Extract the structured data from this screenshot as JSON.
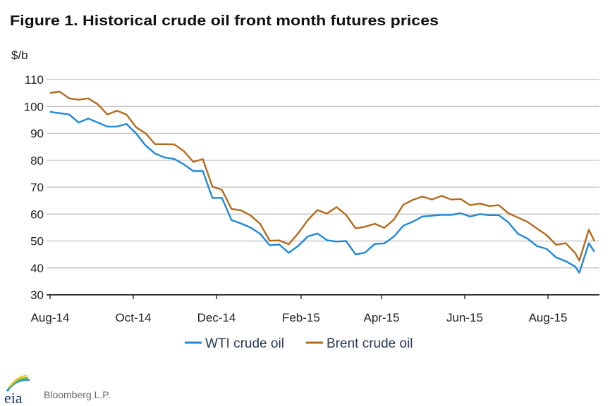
{
  "chart_data": {
    "type": "line",
    "title": "Figure 1. Historical crude oil front month futures prices",
    "ylabel": "$/b",
    "xlabel": "",
    "ylim": [
      30,
      110
    ],
    "yticks": [
      "30",
      "40",
      "50",
      "60",
      "70",
      "80",
      "90",
      "100",
      "110"
    ],
    "xticks": [
      {
        "label": "Aug-14",
        "date": "2014-08-01"
      },
      {
        "label": "Oct-14",
        "date": "2014-10-01"
      },
      {
        "label": "Dec-14",
        "date": "2014-12-01"
      },
      {
        "label": "Feb-15",
        "date": "2015-02-01"
      },
      {
        "label": "Apr-15",
        "date": "2015-04-01"
      },
      {
        "label": "Jun-15",
        "date": "2015-06-01"
      },
      {
        "label": "Aug-15",
        "date": "2015-08-01"
      }
    ],
    "grid": true,
    "legend": "bottom",
    "x": [
      "2014-08-01",
      "2014-08-08",
      "2014-08-15",
      "2014-08-22",
      "2014-08-29",
      "2014-09-05",
      "2014-09-12",
      "2014-09-19",
      "2014-09-26",
      "2014-10-03",
      "2014-10-10",
      "2014-10-17",
      "2014-10-24",
      "2014-10-31",
      "2014-11-07",
      "2014-11-14",
      "2014-11-21",
      "2014-11-28",
      "2014-12-05",
      "2014-12-12",
      "2014-12-19",
      "2014-12-26",
      "2015-01-02",
      "2015-01-09",
      "2015-01-16",
      "2015-01-23",
      "2015-01-30",
      "2015-02-06",
      "2015-02-13",
      "2015-02-20",
      "2015-02-27",
      "2015-03-06",
      "2015-03-13",
      "2015-03-20",
      "2015-03-27",
      "2015-04-03",
      "2015-04-10",
      "2015-04-17",
      "2015-04-24",
      "2015-05-01",
      "2015-05-08",
      "2015-05-15",
      "2015-05-22",
      "2015-05-29",
      "2015-06-05",
      "2015-06-12",
      "2015-06-19",
      "2015-06-26",
      "2015-07-03",
      "2015-07-10",
      "2015-07-17",
      "2015-07-24",
      "2015-07-31",
      "2015-08-07",
      "2015-08-14",
      "2015-08-21",
      "2015-08-24",
      "2015-08-31",
      "2015-09-04"
    ],
    "series": [
      {
        "name": "WTI crude oil",
        "color": "#1f88d6",
        "values": [
          98,
          97.5,
          97,
          94,
          95.5,
          94,
          92.5,
          92.5,
          93.5,
          90,
          85.5,
          82.5,
          81,
          80.5,
          78.5,
          76,
          76,
          66,
          66,
          57.8,
          56.5,
          55,
          52.7,
          48.4,
          48.7,
          45.6,
          48.2,
          51.7,
          52.8,
          50.3,
          49.8,
          50,
          45,
          45.7,
          48.9,
          49.1,
          51.6,
          55.7,
          57.2,
          59.1,
          59.4,
          59.7,
          59.7,
          60.3,
          59.1,
          60,
          59.6,
          59.6,
          56.9,
          52.7,
          50.9,
          48.1,
          47.1,
          43.9,
          42.5,
          40.5,
          38.2,
          49.2,
          46
        ]
      },
      {
        "name": "Brent crude oil",
        "color": "#b46a1c",
        "values": [
          105,
          105.5,
          103,
          102.5,
          103,
          100.8,
          97,
          98.4,
          97,
          92.3,
          90,
          86,
          86,
          85.9,
          83.4,
          79.4,
          80.4,
          70.2,
          69,
          61.9,
          61.4,
          59.5,
          56.4,
          50.1,
          50.2,
          48.8,
          52.9,
          57.8,
          61.5,
          60.2,
          62.6,
          59.7,
          54.7,
          55.3,
          56.4,
          54.9,
          57.9,
          63.5,
          65.3,
          66.5,
          65.4,
          66.8,
          65.4,
          65.6,
          63.3,
          63.9,
          63,
          63.3,
          60.3,
          58.7,
          57.1,
          54.6,
          52.2,
          48.6,
          49.2,
          45.5,
          42.7,
          54.2,
          50
        ]
      }
    ]
  },
  "footer": {
    "logo_text": "eia",
    "source": "Bloomberg L.P."
  }
}
